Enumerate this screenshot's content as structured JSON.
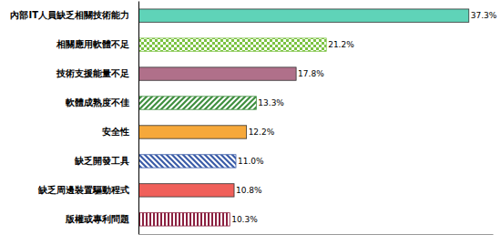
{
  "chart_data": {
    "type": "bar",
    "orientation": "horizontal",
    "categories": [
      "內部IT人員缺乏相關技術能力",
      "相關應用軟體不足",
      "技術支援能量不足",
      "軟體成熟度不佳",
      "安全性",
      "缺乏開發工具",
      "缺乏周邊裝置驅動程式",
      "版權或專利問題"
    ],
    "values": [
      37.3,
      21.2,
      17.8,
      13.3,
      12.2,
      11.0,
      10.8,
      10.3
    ],
    "value_labels": [
      "37.3%",
      "21.2%",
      "17.8%",
      "13.3%",
      "12.2%",
      "11.0%",
      "10.8%",
      "10.3%"
    ],
    "colors": [
      "#5fd3b8",
      "#7cc242",
      "#b0708a",
      "#3f8f3f",
      "#f6a83a",
      "#3b5ca8",
      "#f0605a",
      "#8b2040"
    ],
    "xlim": [
      0,
      40
    ],
    "data_labels": true,
    "tick_labels": "y",
    "grid": false
  }
}
